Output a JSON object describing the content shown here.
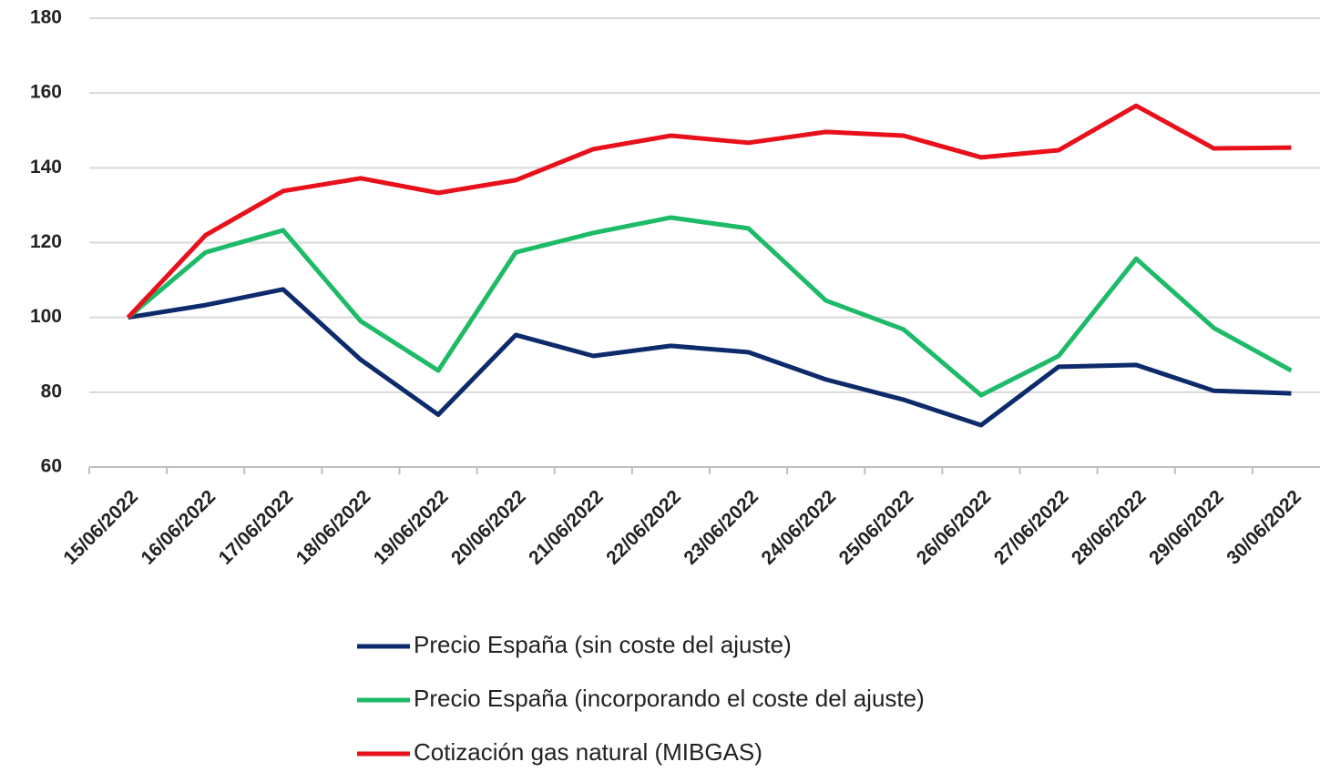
{
  "chart_data": {
    "type": "line",
    "categories": [
      "15/06/2022",
      "16/06/2022",
      "17/06/2022",
      "18/06/2022",
      "19/06/2022",
      "20/06/2022",
      "21/06/2022",
      "22/06/2022",
      "23/06/2022",
      "24/06/2022",
      "25/06/2022",
      "26/06/2022",
      "27/06/2022",
      "28/06/2022",
      "29/06/2022",
      "30/06/2022"
    ],
    "series": [
      {
        "name": "Precio España (sin coste del ajuste)",
        "color": "#0d2a6b",
        "values": [
          100,
          103.3,
          107.5,
          88.7,
          74,
          95.3,
          89.7,
          92.4,
          90.7,
          83.4,
          78,
          71.2,
          86.8,
          87.3,
          80.4,
          79.7
        ]
      },
      {
        "name": "Precio España (incorporando el coste del ajuste)",
        "color": "#1dbb68",
        "values": [
          100,
          117.4,
          123.3,
          99,
          85.8,
          117.4,
          122.6,
          126.7,
          123.8,
          104.5,
          96.8,
          79.2,
          89.7,
          115.7,
          97.2,
          85.8
        ]
      },
      {
        "name": "Cotización gas natural (MIBGAS)",
        "color": "#e8101a",
        "values": [
          100,
          122,
          133.8,
          137.2,
          133.3,
          136.7,
          145,
          148.6,
          146.7,
          149.6,
          148.6,
          142.8,
          144.7,
          156.6,
          145.2,
          145.4
        ]
      }
    ],
    "ylim": [
      60,
      180
    ],
    "yticks": [
      60,
      80,
      100,
      120,
      140,
      160,
      180
    ],
    "grid": true
  }
}
